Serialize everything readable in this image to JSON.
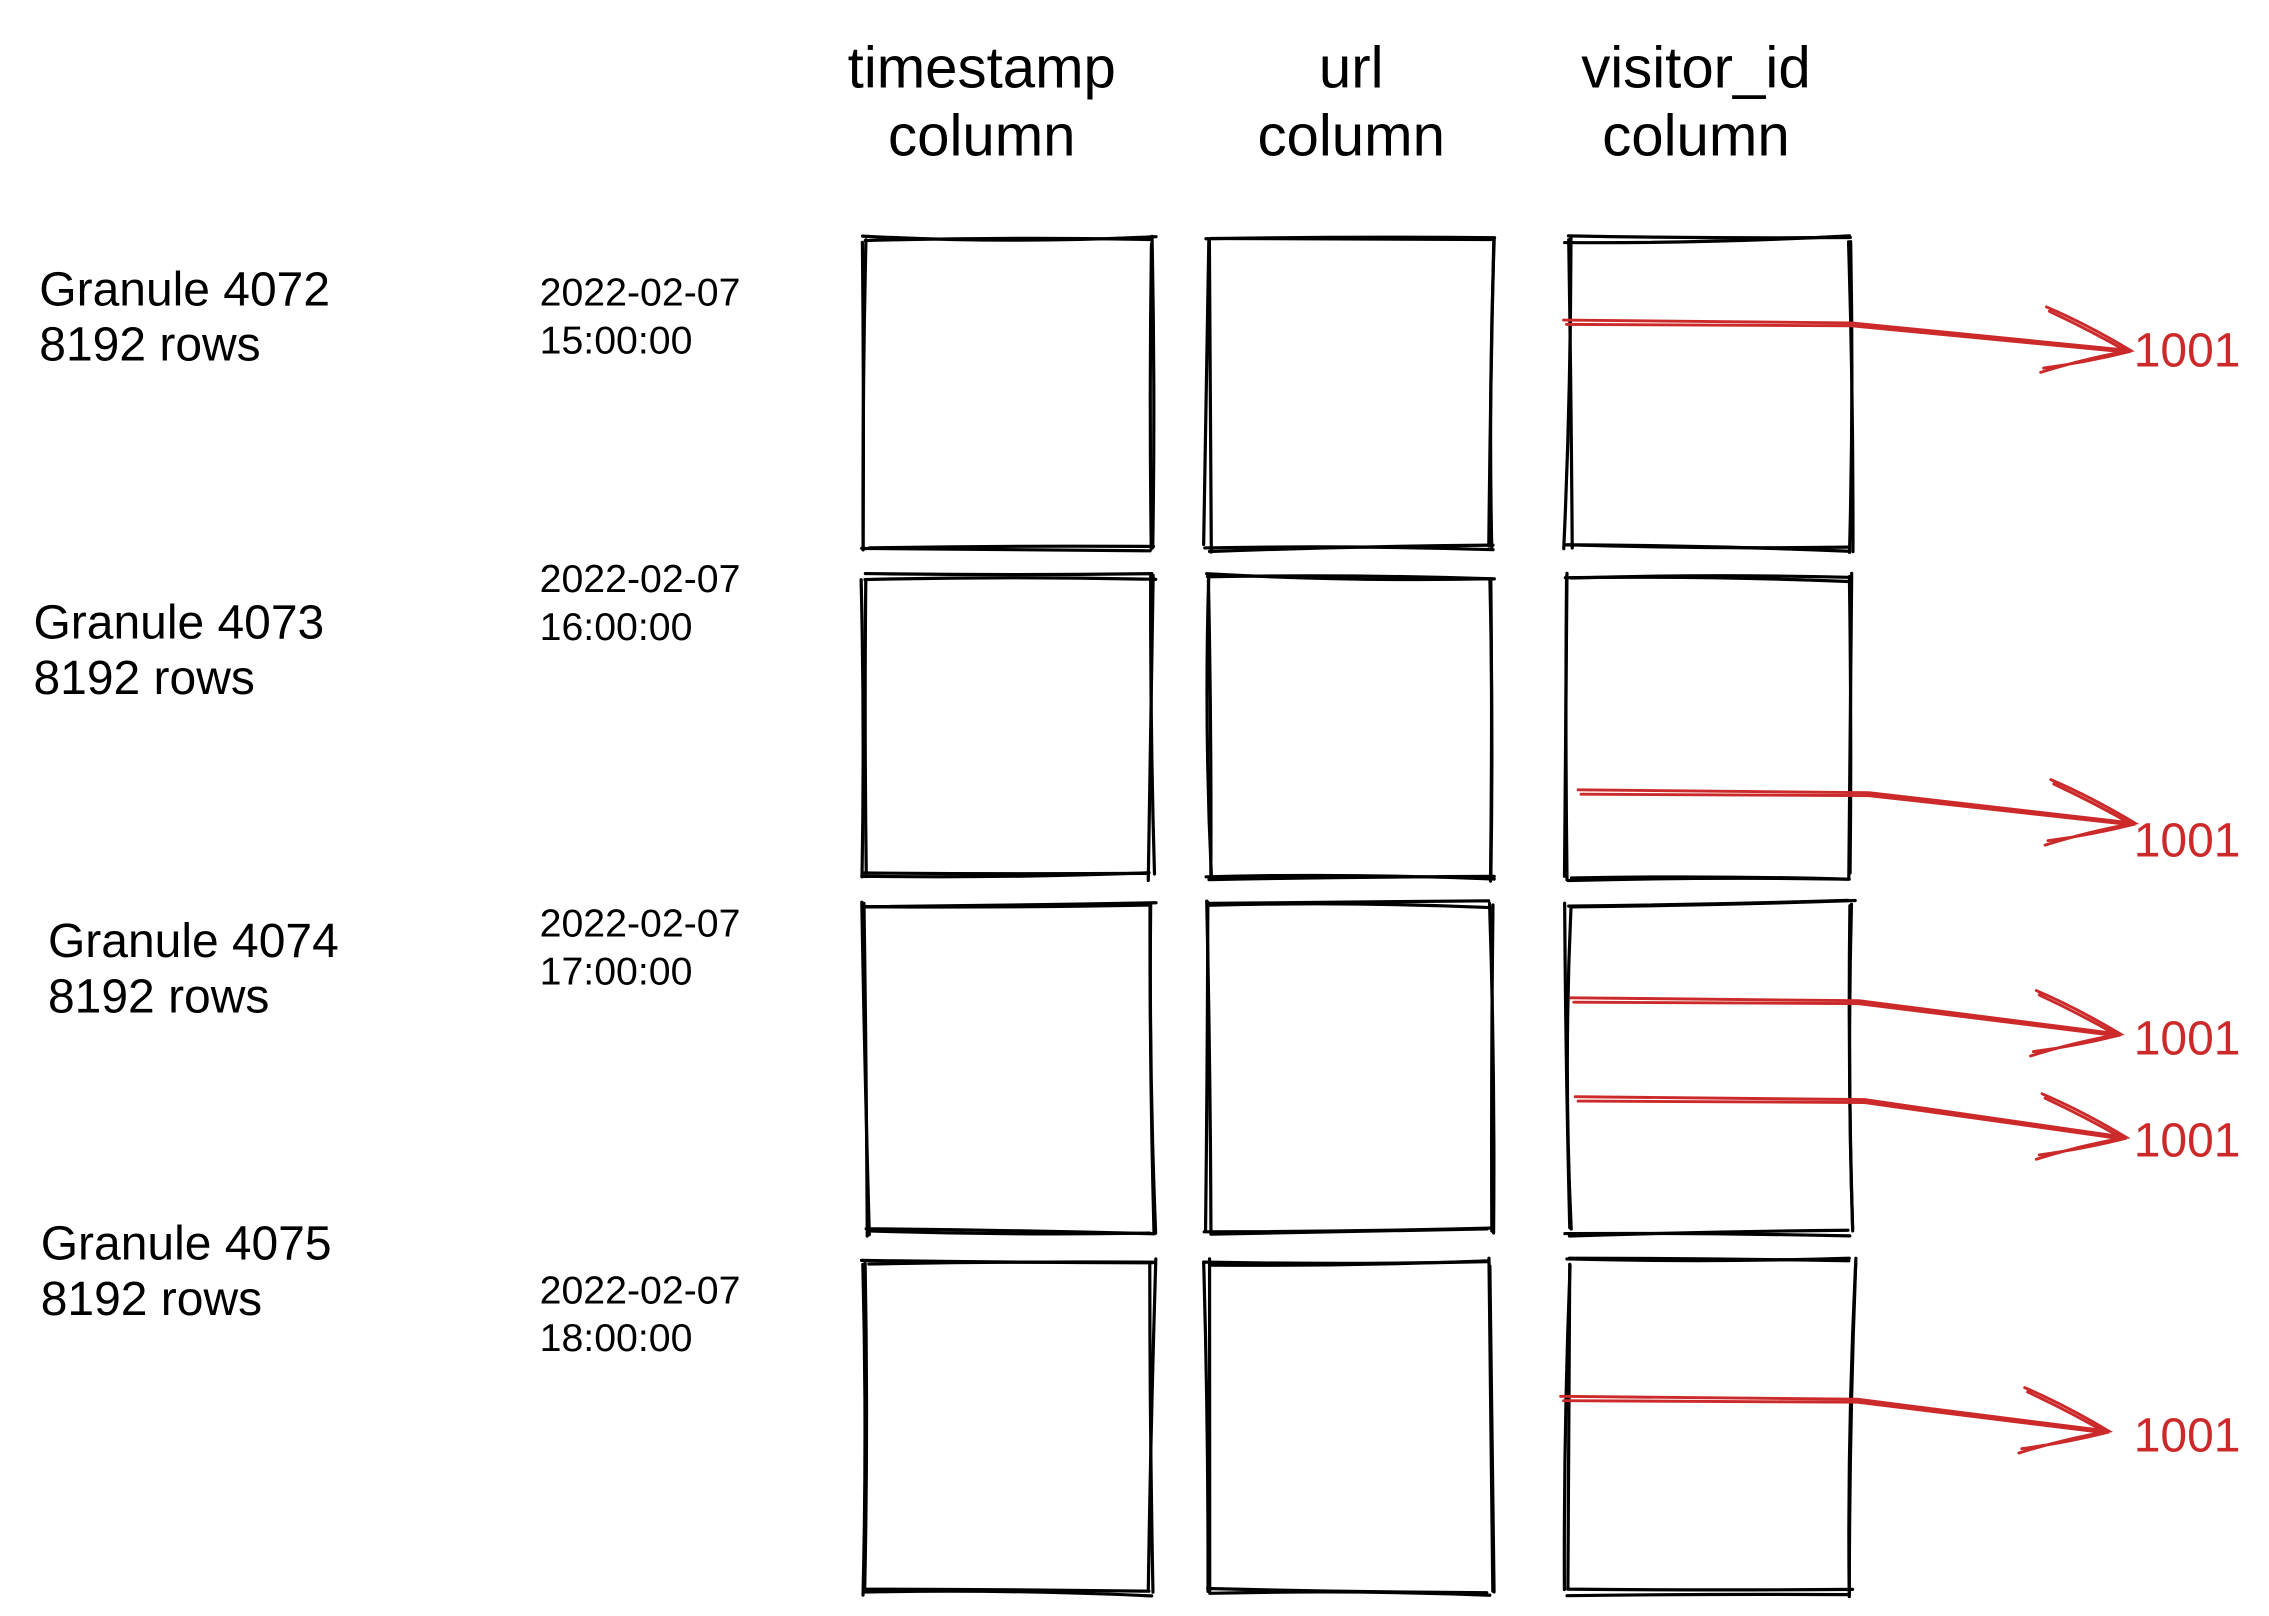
{
  "columns": [
    {
      "line1": "timestamp",
      "line2": "column"
    },
    {
      "line1": "url",
      "line2": "column"
    },
    {
      "line1": "visitor_id",
      "line2": "column"
    }
  ],
  "granules": [
    {
      "name": "Granule 4072",
      "rows": "8192 rows",
      "date": "2022-02-07",
      "time": "15:00:00"
    },
    {
      "name": "Granule 4073",
      "rows": "8192 rows",
      "date": "2022-02-07",
      "time": "16:00:00"
    },
    {
      "name": "Granule 4074",
      "rows": "8192 rows",
      "date": "2022-02-07",
      "time": "17:00:00"
    },
    {
      "name": "Granule 4075",
      "rows": "8192 rows",
      "date": "2022-02-07",
      "time": "18:00:00"
    }
  ],
  "matches": [
    {
      "granule": "Granule 4072",
      "value": "1001"
    },
    {
      "granule": "Granule 4073",
      "value": "1001"
    },
    {
      "granule": "Granule 4074",
      "value": "1001"
    },
    {
      "granule": "Granule 4074",
      "value": "1001"
    },
    {
      "granule": "Granule 4075",
      "value": "1001"
    }
  ],
  "colors": {
    "ink": "#000000",
    "highlight": "#cc2a2a"
  }
}
